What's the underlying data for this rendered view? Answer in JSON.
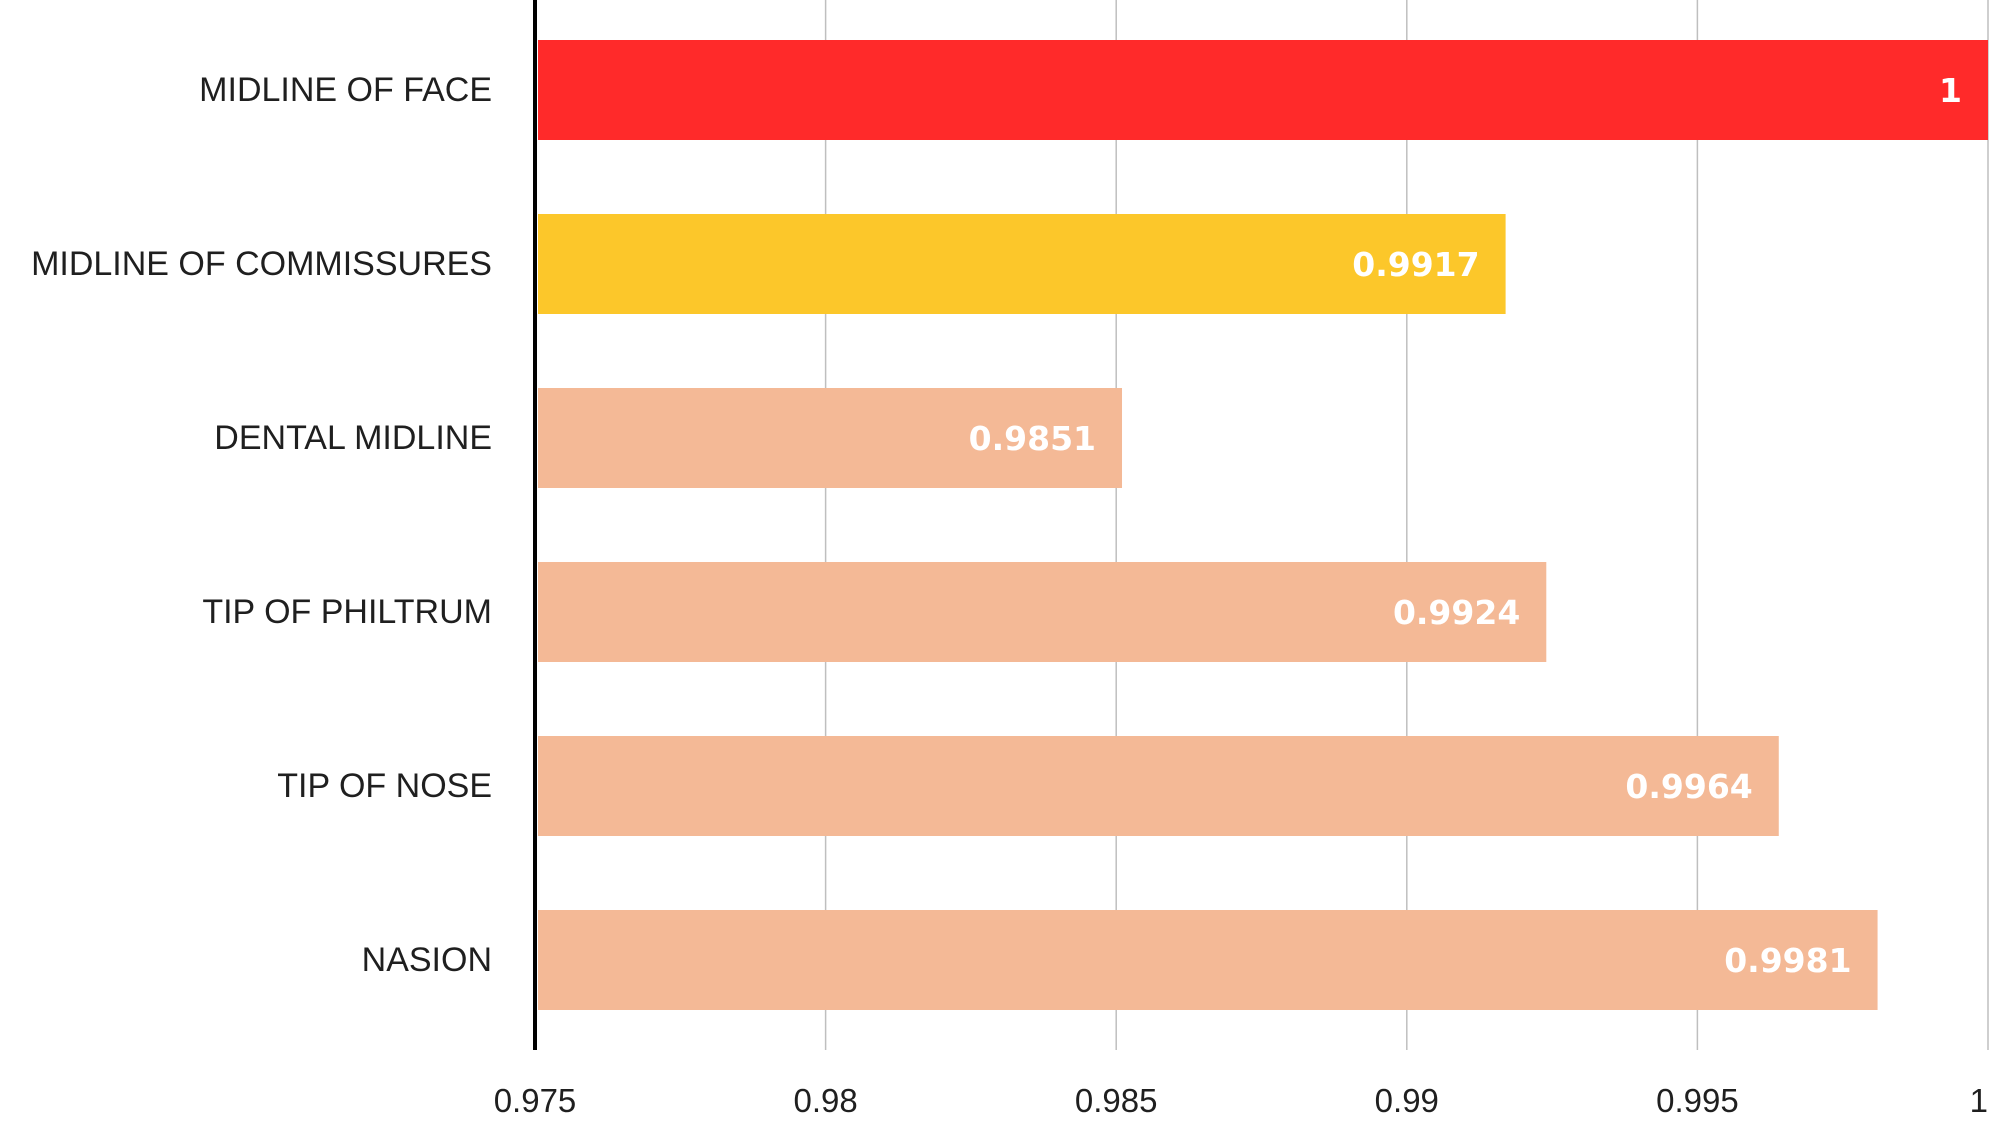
{
  "chart_data": {
    "type": "bar",
    "orientation": "horizontal",
    "title": "",
    "xlabel": "",
    "ylabel": "",
    "categories": [
      "MIDLINE OF FACE",
      "MIDLINE OF COMMISSURES",
      "DENTAL MIDLINE",
      "TIP OF PHILTRUM",
      "TIP OF NOSE",
      "NASION"
    ],
    "values": [
      1,
      0.9917,
      0.9851,
      0.9924,
      0.9964,
      0.9981
    ],
    "data_labels": [
      "1",
      "0.9917",
      "0.9851",
      "0.9924",
      "0.9964",
      "0.9981"
    ],
    "bar_colors": [
      "#ff2a2a",
      "#fcc72a",
      "#f4b996",
      "#f4b996",
      "#f4b996",
      "#f4b996"
    ],
    "xlim": [
      0.975,
      1
    ],
    "x_ticks": [
      0.975,
      0.98,
      0.985,
      0.99,
      0.995,
      1
    ],
    "x_tick_labels": [
      "0.975",
      "0.98",
      "0.985",
      "0.99",
      "0.995",
      "1"
    ],
    "grid": "vertical",
    "legend": "none"
  }
}
